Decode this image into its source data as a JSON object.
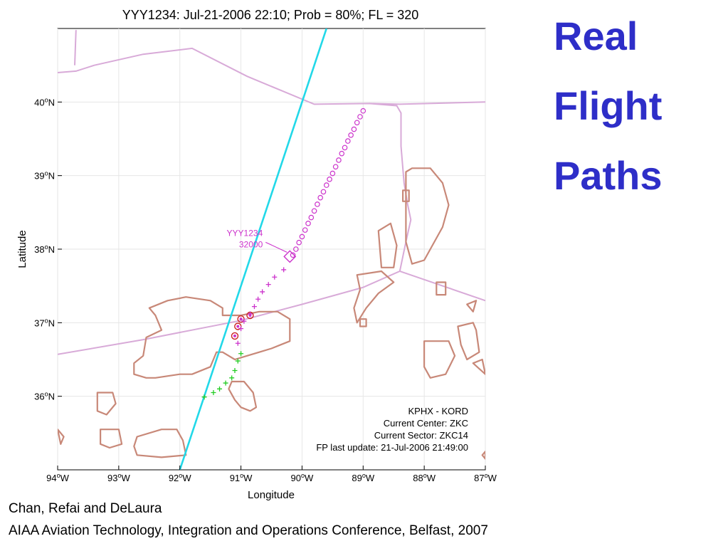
{
  "slide": {
    "title_lines": [
      "Real",
      "Flight",
      "Paths"
    ],
    "credit_authors": "Chan, Refai and DeLaura",
    "credit_venue": "AIAA Aviation Technology, Integration and Operations Conference, Belfast, 2007"
  },
  "colors": {
    "title": "#2e2ec8",
    "flight_path": "#22d8e8",
    "boundary": "#d8aad8",
    "weather": "#c88878",
    "track_past": "#cc33cc",
    "track_future": "#22cc22"
  },
  "chart_data": {
    "type": "scatter",
    "title": "YYY1234: Jul-21-2006 22:10; Prob = 80%; FL = 320",
    "xlabel": "Longitude",
    "ylabel": "Latitude",
    "xlim": [
      -94,
      -87
    ],
    "ylim": [
      35,
      41
    ],
    "x_ticks": [
      {
        "value": -94,
        "deg": "94",
        "dir": "W"
      },
      {
        "value": -93,
        "deg": "93",
        "dir": "W"
      },
      {
        "value": -92,
        "deg": "92",
        "dir": "W"
      },
      {
        "value": -91,
        "deg": "91",
        "dir": "W"
      },
      {
        "value": -90,
        "deg": "90",
        "dir": "W"
      },
      {
        "value": -89,
        "deg": "89",
        "dir": "W"
      },
      {
        "value": -88,
        "deg": "88",
        "dir": "W"
      },
      {
        "value": -87,
        "deg": "87",
        "dir": "W"
      }
    ],
    "y_ticks": [
      {
        "value": 36,
        "deg": "36",
        "dir": "N"
      },
      {
        "value": 37,
        "deg": "37",
        "dir": "N"
      },
      {
        "value": 38,
        "deg": "38",
        "dir": "N"
      },
      {
        "value": 39,
        "deg": "39",
        "dir": "N"
      },
      {
        "value": 40,
        "deg": "40",
        "dir": "N"
      }
    ],
    "grid": true,
    "flight_plan": {
      "x": [
        -92.0,
        -89.6
      ],
      "y": [
        35.0,
        41.0
      ]
    },
    "boundaries": [
      {
        "x": [
          -94.0,
          -93.7,
          -93.4,
          -92.6,
          -91.8,
          -90.9,
          -89.8,
          -88.9,
          -88.4,
          -87.0
        ],
        "y": [
          40.4,
          40.42,
          40.5,
          40.65,
          40.73,
          40.35,
          39.97,
          39.98,
          39.97,
          40.0
        ]
      },
      {
        "x": [
          -93.7,
          -93.72
        ],
        "y": [
          40.98,
          40.5
        ]
      },
      {
        "x": [
          -88.9,
          -88.45,
          -88.38,
          -88.38,
          -88.33,
          -88.27,
          -88.22,
          -88.3,
          -88.4,
          -87.0
        ],
        "y": [
          39.98,
          39.95,
          39.85,
          39.4,
          38.9,
          38.6,
          38.4,
          38.1,
          37.7,
          37.3
        ]
      },
      {
        "x": [
          -94.0,
          -92.6,
          -91.0,
          -90.0,
          -89.0,
          -88.4
        ],
        "y": [
          36.57,
          36.77,
          37.03,
          37.25,
          37.48,
          37.7
        ]
      }
    ],
    "weather_cells": [
      {
        "x": [
          -92.5,
          -92.2,
          -91.9,
          -91.5,
          -91.3,
          -91.3,
          -91.0,
          -90.7,
          -90.4,
          -90.2,
          -90.2,
          -90.35,
          -90.5,
          -90.7,
          -90.9,
          -91.1,
          -91.3,
          -91.4,
          -91.5,
          -91.8,
          -92.0,
          -92.4,
          -92.55,
          -92.75,
          -92.75,
          -92.6,
          -92.55,
          -92.3,
          -92.4,
          -92.5
        ],
        "y": [
          37.2,
          37.3,
          37.35,
          37.3,
          37.2,
          37.1,
          37.1,
          37.15,
          37.15,
          37.05,
          36.75,
          36.7,
          36.65,
          36.6,
          36.55,
          36.5,
          36.6,
          36.6,
          36.4,
          36.3,
          36.3,
          36.25,
          36.25,
          36.3,
          36.45,
          36.55,
          36.8,
          36.9,
          37.1,
          37.2
        ]
      },
      {
        "x": [
          -93.35,
          -93.1,
          -93.05,
          -93.2,
          -93.35,
          -93.35
        ],
        "y": [
          36.05,
          36.05,
          35.9,
          35.75,
          35.8,
          36.05
        ]
      },
      {
        "x": [
          -93.3,
          -93.0,
          -92.95,
          -93.15,
          -93.3,
          -93.3
        ],
        "y": [
          35.55,
          35.55,
          35.35,
          35.3,
          35.35,
          35.55
        ]
      },
      {
        "x": [
          -92.7,
          -92.3,
          -92.05,
          -91.95,
          -91.9,
          -92.3,
          -92.7,
          -92.75,
          -92.7
        ],
        "y": [
          35.45,
          35.55,
          35.55,
          35.4,
          35.2,
          35.17,
          35.2,
          35.32,
          35.45
        ]
      },
      {
        "x": [
          -91.15,
          -90.95,
          -90.8,
          -90.75,
          -90.85,
          -91.0,
          -91.1,
          -91.2,
          -91.15
        ],
        "y": [
          36.2,
          36.2,
          36.05,
          35.85,
          35.8,
          35.85,
          35.95,
          36.1,
          36.2
        ]
      },
      {
        "x": [
          -89.1,
          -88.7,
          -88.5,
          -88.75,
          -88.95,
          -89.1,
          -89.15,
          -89.05,
          -89.1
        ],
        "y": [
          37.65,
          37.7,
          37.55,
          37.4,
          37.2,
          37.0,
          37.2,
          37.45,
          37.65
        ]
      },
      {
        "x": [
          -88.75,
          -88.55,
          -88.45,
          -88.5,
          -88.7,
          -88.75
        ],
        "y": [
          38.25,
          38.35,
          38.05,
          37.75,
          37.75,
          38.25
        ]
      },
      {
        "x": [
          -88.3,
          -88.2,
          -87.9,
          -87.7,
          -87.6,
          -87.7,
          -87.9,
          -88.0,
          -88.2,
          -88.3,
          -88.3
        ],
        "y": [
          39.05,
          39.1,
          39.1,
          38.9,
          38.6,
          38.3,
          38.0,
          37.85,
          37.8,
          38.1,
          39.05
        ]
      },
      {
        "x": [
          -88.35,
          -88.25,
          -88.25,
          -88.35,
          -88.35
        ],
        "y": [
          38.8,
          38.8,
          38.65,
          38.65,
          38.8
        ]
      },
      {
        "x": [
          -87.8,
          -87.65,
          -87.65,
          -87.8,
          -87.8
        ],
        "y": [
          37.55,
          37.55,
          37.38,
          37.38,
          37.55
        ]
      },
      {
        "x": [
          -87.3,
          -87.15,
          -87.2,
          -87.3
        ],
        "y": [
          37.25,
          37.3,
          37.15,
          37.25
        ]
      },
      {
        "x": [
          -88.0,
          -87.6,
          -87.5,
          -87.65,
          -87.9,
          -88.0,
          -88.0
        ],
        "y": [
          36.75,
          36.75,
          36.55,
          36.3,
          36.25,
          36.4,
          36.75
        ]
      },
      {
        "x": [
          -87.45,
          -87.2,
          -87.15,
          -87.1,
          -87.3,
          -87.4,
          -87.45
        ],
        "y": [
          36.95,
          37.0,
          36.9,
          36.6,
          36.5,
          36.7,
          36.95
        ]
      },
      {
        "x": [
          -87.2,
          -87.05,
          -87.0,
          -87.2
        ],
        "y": [
          36.45,
          36.5,
          36.3,
          36.45
        ]
      },
      {
        "x": [
          -94.0,
          -93.9,
          -93.95,
          -94.0
        ],
        "y": [
          35.55,
          35.45,
          35.35,
          35.55
        ]
      },
      {
        "x": [
          -87.0,
          -87.05,
          -87.0
        ],
        "y": [
          35.25,
          35.2,
          35.15
        ]
      },
      {
        "x": [
          -89.05,
          -88.95,
          -88.95,
          -89.05,
          -89.05
        ],
        "y": [
          37.05,
          37.05,
          36.95,
          36.95,
          37.05
        ]
      }
    ],
    "track_past": {
      "x": [
        -89.0,
        -89.05,
        -89.1,
        -89.15,
        -89.2,
        -89.25,
        -89.3,
        -89.35,
        -89.4,
        -89.45,
        -89.5,
        -89.55,
        -89.6,
        -89.65,
        -89.7,
        -89.75,
        -89.8,
        -89.85,
        -89.9,
        -89.95,
        -90.0,
        -90.05,
        -90.1,
        -90.15
      ],
      "y": [
        39.88,
        39.8,
        39.72,
        39.63,
        39.55,
        39.47,
        39.38,
        39.3,
        39.21,
        39.12,
        39.03,
        38.95,
        38.87,
        38.78,
        38.7,
        38.61,
        38.52,
        38.43,
        38.35,
        38.26,
        38.17,
        38.09,
        38.0,
        37.92
      ]
    },
    "track_history": {
      "x": [
        -90.3,
        -90.45,
        -90.55,
        -90.65,
        -90.72,
        -90.78,
        -90.85,
        -90.95,
        -91.0,
        -91.05
      ],
      "y": [
        37.72,
        37.62,
        37.52,
        37.42,
        37.32,
        37.22,
        37.12,
        37.02,
        36.92,
        36.72
      ]
    },
    "track_circles": {
      "x": [
        -90.85,
        -91.0,
        -91.05,
        -91.1
      ],
      "y": [
        37.1,
        37.05,
        36.95,
        36.82
      ]
    },
    "track_future": {
      "x": [
        -91.0,
        -91.05,
        -91.1,
        -91.15,
        -91.25,
        -91.35,
        -91.45,
        -91.6
      ],
      "y": [
        36.58,
        36.48,
        36.35,
        36.25,
        36.18,
        36.1,
        36.05,
        35.99
      ]
    },
    "aircraft": {
      "x": -90.2,
      "y": 37.9,
      "label_id": "YYY1234",
      "label_alt": "32000"
    },
    "info_box": [
      "KPHX - KORD",
      "Current Center: ZKC",
      "Current Sector: ZKC14",
      "FP last update: 21-Jul-2006 21:49:00"
    ]
  }
}
